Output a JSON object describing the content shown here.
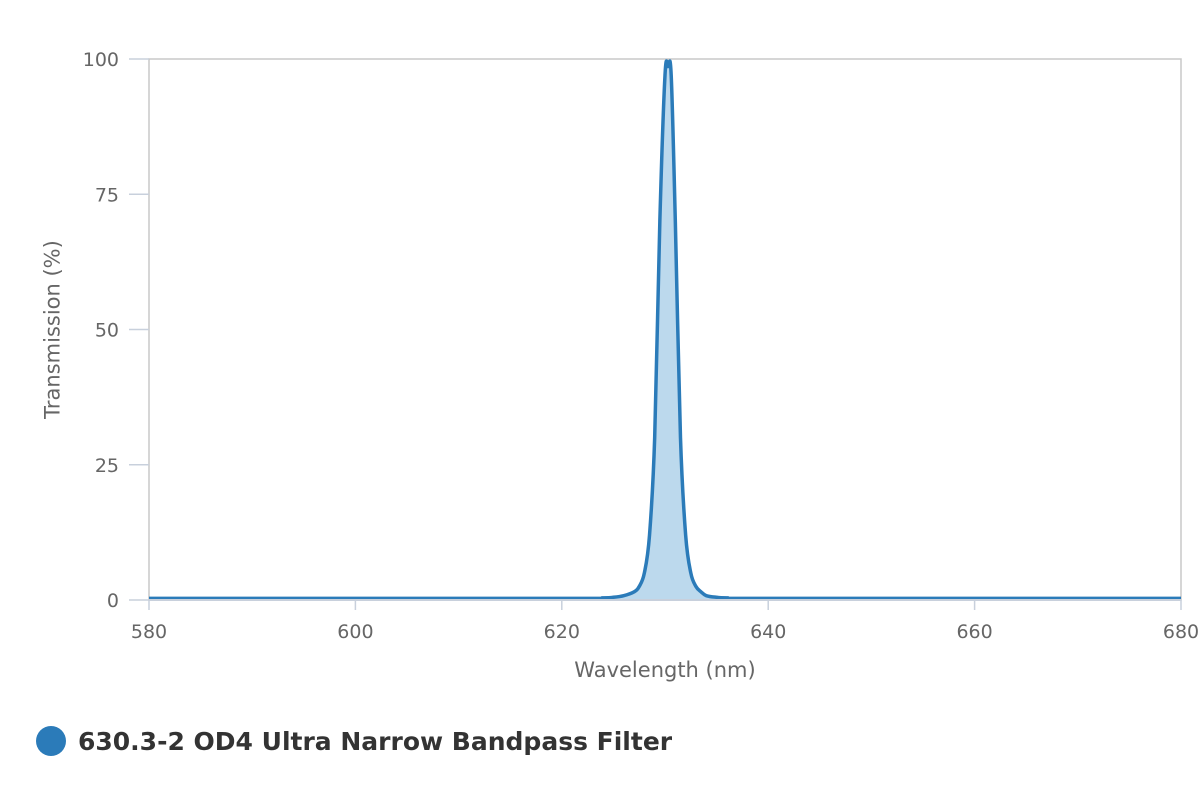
{
  "chart_data": {
    "type": "area",
    "xlabel": "Wavelength (nm)",
    "ylabel": "Transmission (%)",
    "xlim": [
      580,
      680
    ],
    "ylim": [
      0,
      100
    ],
    "x_ticks": [
      580,
      600,
      620,
      640,
      660,
      680
    ],
    "y_ticks": [
      0,
      25,
      50,
      75,
      100
    ],
    "grid": false,
    "legend_position": "bottom-left",
    "series": [
      {
        "name": "630.3-2 OD4 Ultra Narrow Bandpass Filter",
        "color": "#2b7bb9",
        "fill_color": "#bcd9ed",
        "x": [
          580,
          620,
          624,
          625,
          626,
          627,
          627.5,
          628,
          628.5,
          629,
          629.5,
          630,
          630.3,
          630.6,
          631,
          631.5,
          632,
          632.5,
          633,
          633.5,
          634,
          635,
          636,
          640,
          680
        ],
        "y": [
          0.3,
          0.3,
          0.4,
          0.5,
          0.8,
          1.5,
          2.5,
          5,
          12,
          30,
          70,
          97,
          98.6,
          97,
          70,
          30,
          12,
          5,
          2.5,
          1.5,
          0.8,
          0.5,
          0.4,
          0.3,
          0.3
        ]
      }
    ]
  }
}
